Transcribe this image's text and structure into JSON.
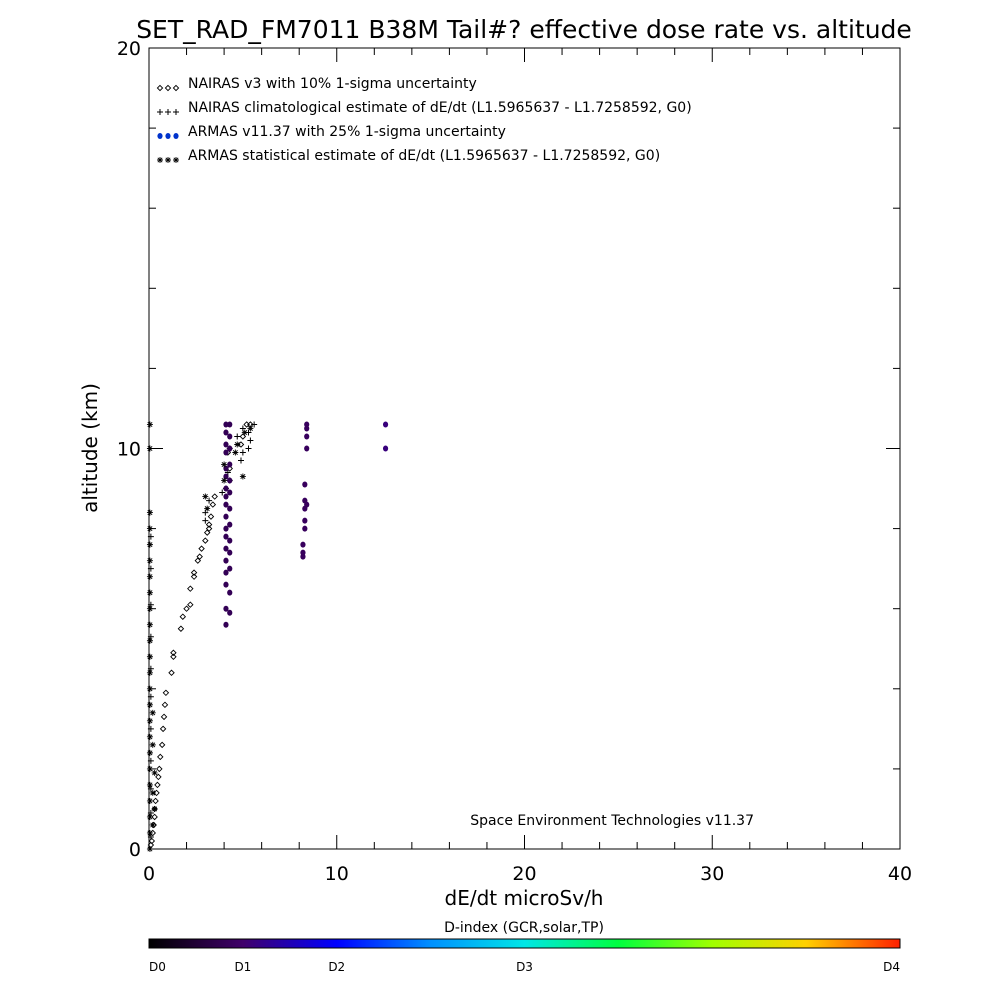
{
  "chart_data": {
    "type": "scatter",
    "title": "SET_RAD_FM7011  B38M Tail#? effective dose rate vs. altitude",
    "xlabel": "dE/dt microSv/h",
    "ylabel": "altitude (km)",
    "xlim": [
      0,
      40
    ],
    "ylim": [
      0,
      20
    ],
    "x_ticks": [
      "0",
      "10",
      "20",
      "30",
      "40"
    ],
    "y_ticks": [
      "0",
      "10",
      "20"
    ],
    "grid": false,
    "legend_position": "top-left",
    "legend": [
      {
        "symbol": "◇◇◇",
        "label": "NAIRAS v3 with 10% 1-sigma uncertainty"
      },
      {
        "symbol": "+++",
        "label": "NAIRAS climatological estimate of dE/dt (L1.5965637 - L1.7258592, G0)"
      },
      {
        "symbol": "●●●",
        "label": "ARMAS v11.37 with 25% 1-sigma uncertainty"
      },
      {
        "symbol": "✱✱✱",
        "label": "ARMAS statistical estimate of dE/dt (L1.5965637 - L1.7258592, G0)"
      }
    ],
    "credit": "Space Environment Technologies v11.37",
    "colorbar": {
      "title": "D-index (GCR,solar,TP)",
      "labels": [
        "D0",
        "D1",
        "D2",
        "D3",
        "D4"
      ],
      "label_positions": [
        0,
        0.125,
        0.25,
        0.5,
        1.0
      ]
    },
    "series": [
      {
        "name": "NAIRAS v3 with 10% 1-sigma uncertainty",
        "marker": "diamond",
        "color": "#000000",
        "points": [
          [
            0.1,
            0.1
          ],
          [
            0.15,
            0.2
          ],
          [
            0.2,
            0.4
          ],
          [
            0.25,
            0.6
          ],
          [
            0.3,
            0.8
          ],
          [
            0.3,
            1.0
          ],
          [
            0.35,
            1.2
          ],
          [
            0.4,
            1.4
          ],
          [
            0.45,
            1.6
          ],
          [
            0.5,
            1.8
          ],
          [
            0.55,
            2.0
          ],
          [
            0.6,
            2.3
          ],
          [
            0.7,
            2.6
          ],
          [
            0.75,
            3.0
          ],
          [
            0.8,
            3.3
          ],
          [
            0.85,
            3.6
          ],
          [
            0.9,
            3.9
          ],
          [
            1.2,
            4.4
          ],
          [
            1.3,
            4.8
          ],
          [
            1.3,
            4.9
          ],
          [
            1.7,
            5.5
          ],
          [
            1.8,
            5.8
          ],
          [
            2.0,
            6.0
          ],
          [
            2.2,
            6.1
          ],
          [
            2.2,
            6.5
          ],
          [
            2.4,
            6.8
          ],
          [
            2.4,
            6.9
          ],
          [
            2.6,
            7.2
          ],
          [
            2.7,
            7.3
          ],
          [
            2.8,
            7.5
          ],
          [
            3.0,
            7.7
          ],
          [
            3.1,
            7.9
          ],
          [
            3.2,
            8.0
          ],
          [
            3.2,
            8.1
          ],
          [
            3.3,
            8.3
          ],
          [
            3.4,
            8.6
          ],
          [
            3.5,
            8.8
          ],
          [
            4.1,
            9.0
          ],
          [
            4.3,
            9.2
          ],
          [
            4.3,
            9.5
          ],
          [
            4.2,
            9.9
          ],
          [
            4.3,
            10.0
          ],
          [
            4.9,
            10.1
          ],
          [
            5.0,
            10.3
          ],
          [
            5.2,
            10.6
          ],
          [
            5.4,
            10.6
          ]
        ]
      },
      {
        "name": "NAIRAS climatological estimate of dE/dt (L1.5965637 - L1.7258592, G0)",
        "marker": "plus",
        "color": "#000000",
        "points": [
          [
            0.1,
            0.3
          ],
          [
            0.1,
            0.9
          ],
          [
            0.1,
            1.5
          ],
          [
            0.1,
            2.2
          ],
          [
            0.1,
            3.0
          ],
          [
            0.1,
            3.8
          ],
          [
            0.1,
            4.5
          ],
          [
            0.1,
            5.3
          ],
          [
            0.1,
            6.1
          ],
          [
            0.1,
            7.0
          ],
          [
            0.1,
            7.8
          ],
          [
            3.0,
            8.2
          ],
          [
            3.0,
            8.4
          ],
          [
            3.2,
            8.7
          ],
          [
            3.9,
            8.9
          ],
          [
            4.2,
            9.4
          ],
          [
            4.9,
            9.7
          ],
          [
            5.0,
            9.9
          ],
          [
            5.3,
            10.0
          ],
          [
            5.4,
            10.2
          ],
          [
            5.3,
            10.4
          ],
          [
            5.6,
            10.6
          ],
          [
            5.0,
            10.5
          ],
          [
            4.7,
            10.3
          ]
        ]
      },
      {
        "name": "ARMAS v11.37 with 25% 1-sigma uncertainty",
        "marker": "circle",
        "points": [
          [
            4.1,
            5.6,
            0.1
          ],
          [
            4.1,
            6.0,
            0.1
          ],
          [
            4.1,
            6.6,
            0.1
          ],
          [
            4.1,
            6.9,
            0.1
          ],
          [
            4.1,
            7.2,
            0.1
          ],
          [
            4.1,
            7.5,
            0.1
          ],
          [
            4.1,
            7.8,
            0.1
          ],
          [
            4.1,
            8.0,
            0.1
          ],
          [
            4.1,
            8.3,
            0.1
          ],
          [
            4.1,
            8.6,
            0.1
          ],
          [
            4.1,
            8.8,
            0.1
          ],
          [
            4.1,
            9.0,
            0.1
          ],
          [
            4.1,
            9.3,
            0.1
          ],
          [
            4.1,
            9.5,
            0.1
          ],
          [
            4.1,
            9.9,
            0.1
          ],
          [
            4.1,
            10.1,
            0.1
          ],
          [
            4.1,
            10.4,
            0.1
          ],
          [
            4.1,
            10.6,
            0.1
          ],
          [
            4.3,
            5.9,
            0.1
          ],
          [
            4.3,
            6.4,
            0.1
          ],
          [
            4.3,
            7.0,
            0.1
          ],
          [
            4.3,
            7.4,
            0.1
          ],
          [
            4.3,
            7.7,
            0.1
          ],
          [
            4.3,
            8.1,
            0.1
          ],
          [
            4.3,
            8.5,
            0.1
          ],
          [
            4.3,
            8.9,
            0.1
          ],
          [
            4.3,
            9.2,
            0.1
          ],
          [
            4.3,
            9.6,
            0.1
          ],
          [
            4.3,
            10.0,
            0.1
          ],
          [
            4.3,
            10.3,
            0.1
          ],
          [
            4.3,
            10.6,
            0.1
          ],
          [
            8.2,
            7.3,
            0.11
          ],
          [
            8.2,
            7.4,
            0.11
          ],
          [
            8.2,
            7.6,
            0.11
          ],
          [
            8.3,
            8.0,
            0.11
          ],
          [
            8.3,
            8.2,
            0.11
          ],
          [
            8.3,
            8.5,
            0.11
          ],
          [
            8.4,
            8.6,
            0.11
          ],
          [
            8.3,
            8.7,
            0.11
          ],
          [
            8.3,
            9.1,
            0.11
          ],
          [
            8.4,
            10.0,
            0.11
          ],
          [
            8.4,
            10.3,
            0.11
          ],
          [
            8.4,
            10.5,
            0.11
          ],
          [
            8.4,
            10.6,
            0.11
          ],
          [
            12.6,
            10.0,
            0.14
          ],
          [
            12.6,
            10.6,
            0.14
          ]
        ]
      },
      {
        "name": "ARMAS statistical estimate of dE/dt (L1.5965637 - L1.7258592, G0)",
        "marker": "asterisk",
        "color": "#000000",
        "points": [
          [
            0.05,
            0.0
          ],
          [
            0.05,
            0.4
          ],
          [
            0.05,
            0.8
          ],
          [
            0.05,
            1.2
          ],
          [
            0.05,
            1.6
          ],
          [
            0.05,
            2.0
          ],
          [
            0.05,
            2.4
          ],
          [
            0.05,
            2.8
          ],
          [
            0.05,
            3.2
          ],
          [
            0.05,
            3.6
          ],
          [
            0.05,
            4.0
          ],
          [
            0.05,
            4.4
          ],
          [
            0.05,
            4.8
          ],
          [
            0.05,
            5.2
          ],
          [
            0.05,
            5.6
          ],
          [
            0.05,
            6.0
          ],
          [
            0.05,
            6.4
          ],
          [
            0.05,
            6.8
          ],
          [
            0.05,
            7.2
          ],
          [
            0.05,
            7.6
          ],
          [
            0.05,
            8.0
          ],
          [
            0.05,
            8.4
          ],
          [
            0.05,
            10.0
          ],
          [
            0.05,
            10.6
          ],
          [
            0.2,
            0.6
          ],
          [
            0.2,
            1.4
          ],
          [
            0.2,
            2.6
          ],
          [
            0.2,
            3.4
          ],
          [
            0.3,
            1.0
          ],
          [
            0.3,
            1.9
          ],
          [
            3.0,
            8.8
          ],
          [
            3.1,
            8.5
          ],
          [
            4.0,
            9.2
          ],
          [
            4.0,
            9.6
          ],
          [
            4.6,
            9.9
          ],
          [
            5.0,
            9.3
          ],
          [
            4.7,
            10.1
          ],
          [
            5.1,
            10.4
          ],
          [
            5.4,
            10.5
          ]
        ]
      }
    ]
  }
}
